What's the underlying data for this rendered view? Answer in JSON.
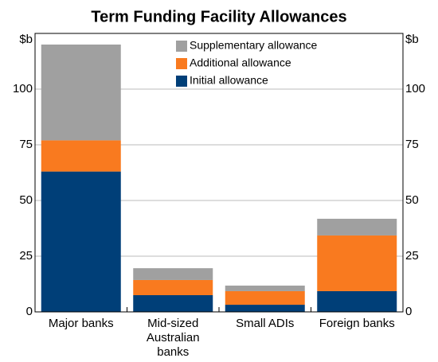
{
  "chart_data": {
    "type": "stacked_bar",
    "title": "Term Funding Facility Allowances",
    "y_unit": "$b",
    "categories": [
      "Major banks",
      "Mid-sized Australian banks",
      "Small ADIs",
      "Foreign banks"
    ],
    "series": [
      {
        "name": "Initial allowance",
        "color": "#003f78",
        "values": [
          63,
          7.5,
          3.2,
          9.3
        ]
      },
      {
        "name": "Additional allowance",
        "color": "#f97a1f",
        "values": [
          14,
          6.8,
          6.1,
          25
        ]
      },
      {
        "name": "Supplementary allowance",
        "color": "#a0a0a0",
        "values": [
          43,
          5.3,
          2.5,
          7.5
        ]
      }
    ],
    "ylim": [
      0,
      125
    ],
    "yticks": [
      0,
      25,
      50,
      75,
      100
    ],
    "grid": true
  }
}
